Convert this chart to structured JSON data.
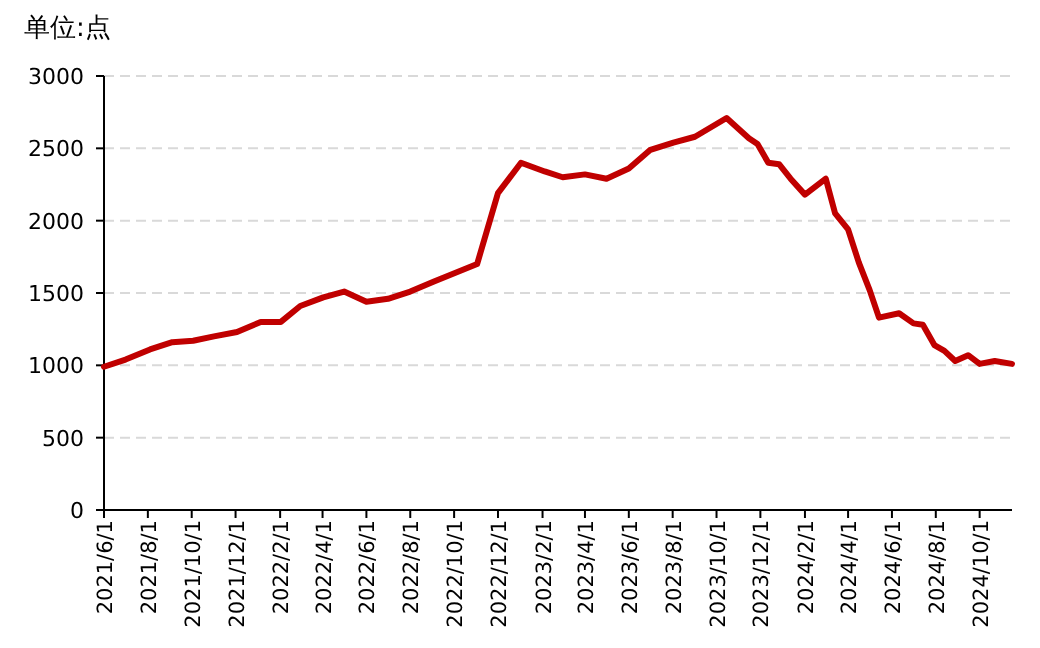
{
  "chart_data": {
    "type": "line",
    "ylabel": "单位:点",
    "ylim": [
      0,
      3000
    ],
    "yticks": [
      0,
      500,
      1000,
      1500,
      2000,
      2500,
      3000
    ],
    "grid": "y",
    "marker": "none",
    "line_style": "solid",
    "xlim": [
      "2021-06-01",
      "2024-11-15"
    ],
    "xticks": [
      {
        "value": "2021-06-01",
        "label": "2021/6/1"
      },
      {
        "value": "2021-08-01",
        "label": "2021/8/1"
      },
      {
        "value": "2021-10-01",
        "label": "2021/10/1"
      },
      {
        "value": "2021-12-01",
        "label": "2021/12/1"
      },
      {
        "value": "2022-02-01",
        "label": "2022/2/1"
      },
      {
        "value": "2022-04-01",
        "label": "2022/4/1"
      },
      {
        "value": "2022-06-01",
        "label": "2022/6/1"
      },
      {
        "value": "2022-08-01",
        "label": "2022/8/1"
      },
      {
        "value": "2022-10-01",
        "label": "2022/10/1"
      },
      {
        "value": "2022-12-01",
        "label": "2022/12/1"
      },
      {
        "value": "2023-02-01",
        "label": "2023/2/1"
      },
      {
        "value": "2023-04-01",
        "label": "2023/4/1"
      },
      {
        "value": "2023-06-01",
        "label": "2023/6/1"
      },
      {
        "value": "2023-08-01",
        "label": "2023/8/1"
      },
      {
        "value": "2023-10-01",
        "label": "2023/10/1"
      },
      {
        "value": "2023-12-01",
        "label": "2023/12/1"
      },
      {
        "value": "2024-02-01",
        "label": "2024/2/1"
      },
      {
        "value": "2024-04-01",
        "label": "2024/4/1"
      },
      {
        "value": "2024-06-01",
        "label": "2024/6/1"
      },
      {
        "value": "2024-08-01",
        "label": "2024/8/1"
      },
      {
        "value": "2024-10-01",
        "label": "2024/10/1"
      }
    ],
    "x": [
      "2021-06-01",
      "2021-07-01",
      "2021-08-04",
      "2021-09-04",
      "2021-10-03",
      "2021-11-01",
      "2021-12-03",
      "2022-01-05",
      "2022-02-02",
      "2022-03-01",
      "2022-04-02",
      "2022-05-01",
      "2022-06-01",
      "2022-07-01",
      "2022-08-01",
      "2022-09-03",
      "2022-10-03",
      "2022-11-02",
      "2022-12-01",
      "2023-01-02",
      "2023-02-04",
      "2023-03-01",
      "2023-04-01",
      "2023-05-01",
      "2023-06-01",
      "2023-07-01",
      "2023-08-02",
      "2023-09-01",
      "2023-10-15",
      "2023-11-15",
      "2023-11-27",
      "2023-12-12",
      "2023-12-27",
      "2024-01-12",
      "2024-02-01",
      "2024-03-01",
      "2024-03-14",
      "2024-04-01",
      "2024-04-16",
      "2024-05-01",
      "2024-05-14",
      "2024-06-11",
      "2024-07-01",
      "2024-07-14",
      "2024-07-30",
      "2024-08-13",
      "2024-08-28",
      "2024-09-15",
      "2024-10-01",
      "2024-10-22",
      "2024-11-15"
    ],
    "series": [
      {
        "color": "#c00000",
        "values": [
          990,
          1040,
          1110,
          1160,
          1170,
          1200,
          1230,
          1300,
          1300,
          1410,
          1470,
          1510,
          1440,
          1460,
          1510,
          1580,
          1640,
          1700,
          2190,
          2400,
          2340,
          2300,
          2320,
          2290,
          2360,
          2490,
          2540,
          2580,
          2710,
          2570,
          2530,
          2400,
          2390,
          2290,
          2180,
          2290,
          2050,
          1940,
          1710,
          1520,
          1330,
          1360,
          1290,
          1280,
          1140,
          1100,
          1030,
          1070,
          1010,
          1030,
          1010
        ]
      }
    ]
  }
}
